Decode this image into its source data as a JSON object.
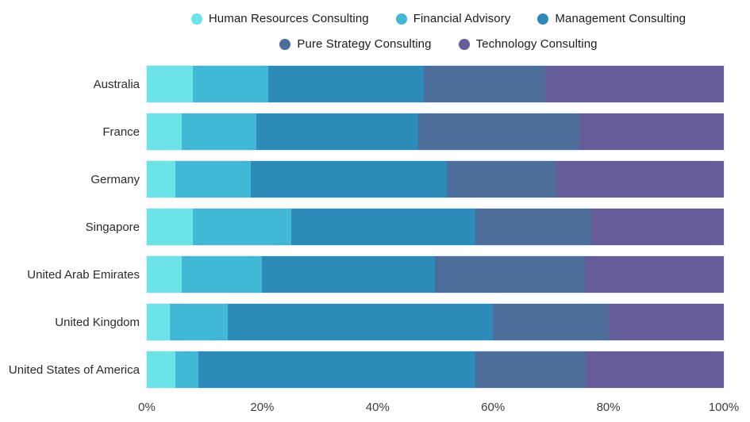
{
  "chart_data": {
    "type": "bar",
    "orientation": "horizontal",
    "stacked": true,
    "unit": "percent",
    "title": "",
    "xlabel": "",
    "ylabel": "",
    "grid": false,
    "legend_position": "top",
    "legend_rows": [
      [
        0,
        1,
        2
      ],
      [
        3,
        4
      ]
    ],
    "categories": [
      "Australia",
      "France",
      "Germany",
      "Singapore",
      "United Arab Emirates",
      "United Kingdom",
      "United States of America"
    ],
    "series": [
      {
        "name": "Human Resources Consulting",
        "color": "#6CE3E6",
        "values": [
          8,
          6,
          5,
          8,
          6,
          4,
          5
        ]
      },
      {
        "name": "Financial Advisory",
        "color": "#41B8D5",
        "values": [
          13,
          13,
          13,
          17,
          14,
          10,
          4
        ]
      },
      {
        "name": "Management Consulting",
        "color": "#2D8BBA",
        "values": [
          27,
          28,
          34,
          32,
          30,
          46,
          48
        ]
      },
      {
        "name": "Pure Strategy Consulting",
        "color": "#4D6D9B",
        "values": [
          21,
          28,
          19,
          20,
          26,
          20,
          19
        ]
      },
      {
        "name": "Technology Consulting",
        "color": "#665C99",
        "values": [
          31,
          25,
          29,
          23,
          24,
          20,
          24
        ]
      }
    ],
    "x_axis": {
      "min": 0,
      "max": 100,
      "tick_labels": [
        "0%",
        "20%",
        "40%",
        "60%",
        "80%",
        "100%"
      ],
      "tick_values": [
        0,
        20,
        40,
        60,
        80,
        100
      ]
    }
  }
}
